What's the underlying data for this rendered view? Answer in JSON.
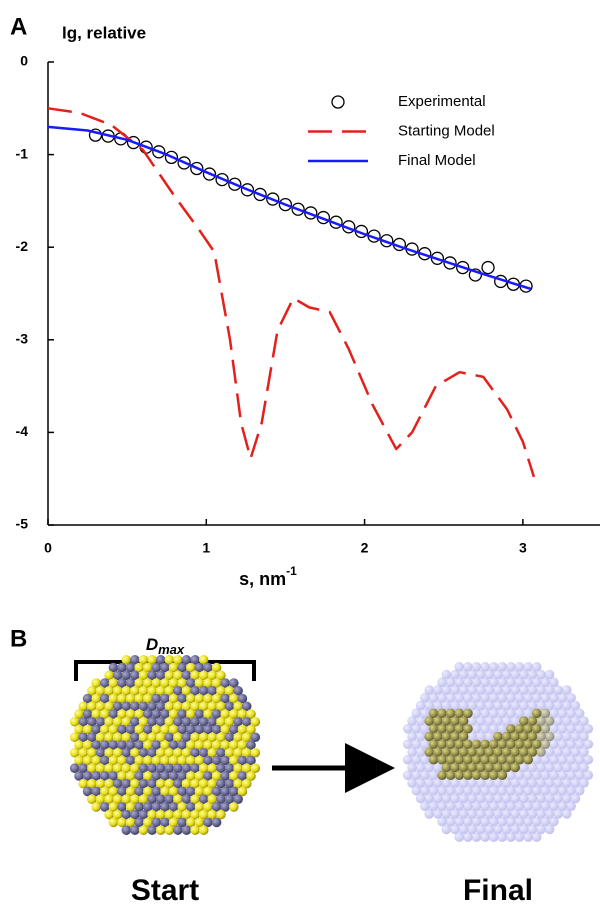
{
  "chart_data": {
    "type": "line",
    "panel_label": "A",
    "y_label": "lg, relative",
    "x_label": "s, nm",
    "x_label_superscript": "-1",
    "xlim": [
      0,
      3.5
    ],
    "ylim": [
      -5,
      0
    ],
    "xticks": [
      0,
      1,
      2,
      3
    ],
    "yticks": [
      0,
      -1,
      -2,
      -3,
      -4,
      -5
    ],
    "legend": "upper right",
    "series": [
      {
        "name": "Experimental",
        "color": "#000000",
        "style": "marker",
        "x": [
          0.3,
          0.38,
          0.46,
          0.54,
          0.62,
          0.7,
          0.78,
          0.86,
          0.94,
          1.02,
          1.1,
          1.18,
          1.26,
          1.34,
          1.42,
          1.5,
          1.58,
          1.66,
          1.74,
          1.82,
          1.9,
          1.98,
          2.06,
          2.14,
          2.22,
          2.3,
          2.38,
          2.46,
          2.54,
          2.62,
          2.7,
          2.78,
          2.86,
          2.94,
          3.02
        ],
        "values": [
          -0.79,
          -0.8,
          -0.83,
          -0.87,
          -0.92,
          -0.97,
          -1.03,
          -1.09,
          -1.15,
          -1.21,
          -1.27,
          -1.32,
          -1.38,
          -1.43,
          -1.48,
          -1.54,
          -1.59,
          -1.63,
          -1.68,
          -1.73,
          -1.78,
          -1.83,
          -1.88,
          -1.93,
          -1.97,
          -2.02,
          -2.07,
          -2.12,
          -2.17,
          -2.22,
          -2.3,
          -2.22,
          -2.37,
          -2.4,
          -2.42
        ]
      },
      {
        "name": "Starting Model",
        "color": "#e3201b",
        "style": "dashed",
        "x": [
          0,
          0.2,
          0.4,
          0.6,
          0.8,
          0.95,
          1.05,
          1.15,
          1.22,
          1.28,
          1.35,
          1.45,
          1.55,
          1.65,
          1.78,
          1.9,
          2.05,
          2.2,
          2.3,
          2.45,
          2.6,
          2.75,
          2.9,
          3.0,
          3.07
        ],
        "values": [
          -0.5,
          -0.55,
          -0.68,
          -0.95,
          -1.45,
          -1.8,
          -2.05,
          -3.0,
          -3.9,
          -4.28,
          -3.9,
          -2.9,
          -2.55,
          -2.65,
          -2.7,
          -3.1,
          -3.7,
          -4.18,
          -4.0,
          -3.5,
          -3.35,
          -3.4,
          -3.75,
          -4.1,
          -4.48
        ]
      },
      {
        "name": "Final Model",
        "color": "#1a1aff",
        "style": "solid",
        "x": [
          0,
          0.25,
          0.5,
          0.75,
          1.0,
          1.25,
          1.5,
          1.75,
          2.0,
          2.25,
          2.5,
          2.75,
          3.05
        ],
        "values": [
          -0.7,
          -0.74,
          -0.84,
          -1.0,
          -1.19,
          -1.37,
          -1.54,
          -1.7,
          -1.86,
          -2.01,
          -2.15,
          -2.29,
          -2.45
        ]
      }
    ]
  },
  "panel_b": {
    "panel_label": "B",
    "dmax_main": "D",
    "dmax_sub": "max",
    "start_label": "Start",
    "start_color": "#e3201b",
    "final_label": "Final",
    "final_color": "#1a1aff"
  }
}
